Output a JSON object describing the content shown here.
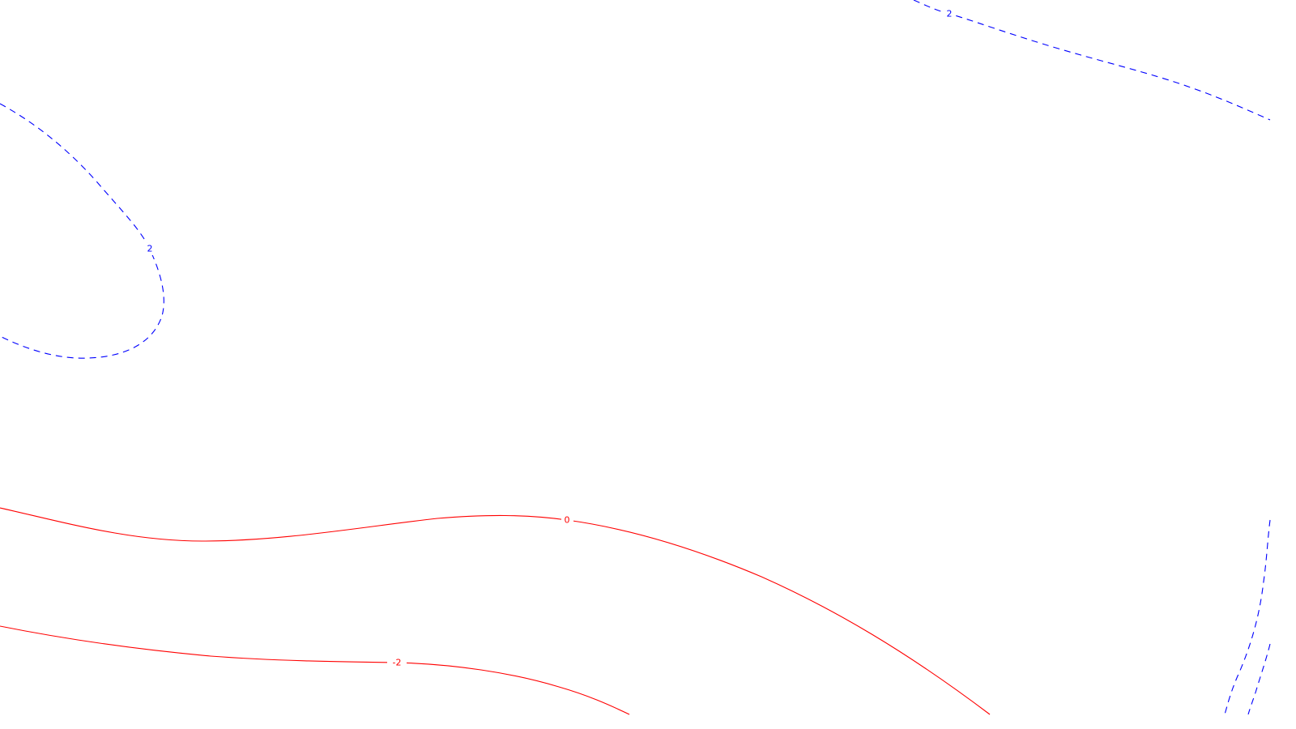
{
  "map": {
    "positive_color": "#0000ff",
    "negative_color": "#ff0000",
    "positive_style": "dashed",
    "negative_style": "solid",
    "contours": [
      {
        "id": "upper-right-plus-2",
        "level": "2",
        "kind": "positive"
      },
      {
        "id": "upper-left-plus-2",
        "level": "2",
        "kind": "positive"
      },
      {
        "id": "middle-zero",
        "level": "0",
        "kind": "negative"
      },
      {
        "id": "lower-minus-2",
        "level": "-2",
        "kind": "negative"
      },
      {
        "id": "bottom-right-outer",
        "level": "",
        "kind": "positive"
      },
      {
        "id": "bottom-right-inner",
        "level": "",
        "kind": "positive"
      }
    ]
  }
}
